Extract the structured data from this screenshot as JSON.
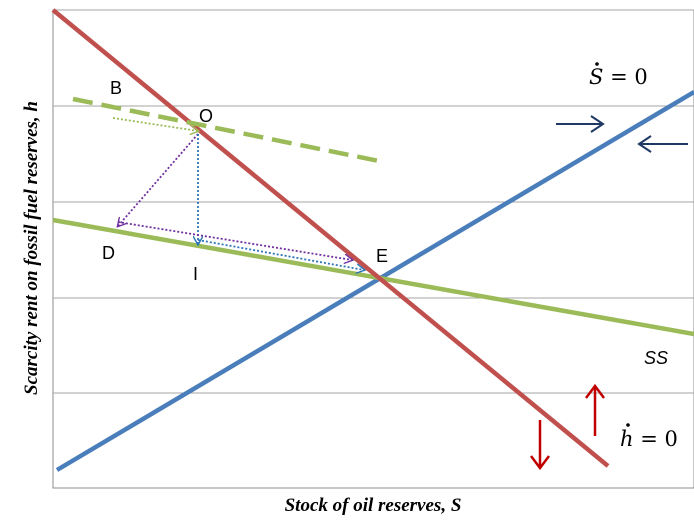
{
  "axes": {
    "x_title": "Stock of oil reserves, S",
    "y_title": "Scarcity rent on fossil fuel reserves, h"
  },
  "points": {
    "B": "B",
    "O": "O",
    "D": "D",
    "I": "I",
    "E": "E"
  },
  "curves": {
    "s_dot_label": {
      "symbol": "S",
      "rest": " = 0"
    },
    "h_dot_label": {
      "symbol": "h",
      "rest": " = 0"
    },
    "ss_label": "SS"
  },
  "colors": {
    "s_dot_line": "#4a7ebb",
    "h_dot_line": "#c0504d",
    "ss_line": "#9bbb59",
    "dotted_purple": "#7030a0",
    "dotted_blue": "#2e75b6",
    "arrow_navy": "#1f3864",
    "arrow_red": "#c00000",
    "grid": "#a6a6a6"
  }
}
